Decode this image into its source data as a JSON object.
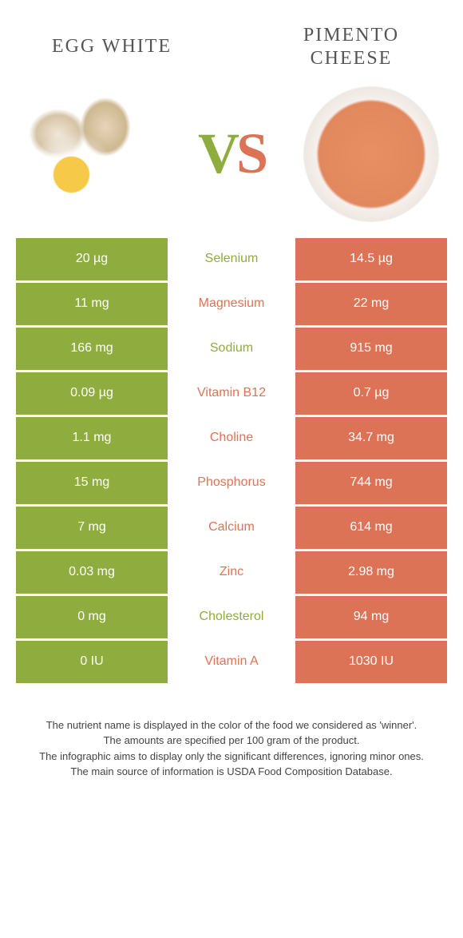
{
  "colors": {
    "left": "#8fad3f",
    "right": "#dd7356",
    "mid_left_text": "#8fad3f",
    "mid_right_text": "#dd7356",
    "white": "#ffffff"
  },
  "header": {
    "left_title": "EGG WHITE",
    "right_title": "PIMENTO CHEESE",
    "vs_v": "V",
    "vs_s": "S"
  },
  "rows": [
    {
      "left": "20 µg",
      "name": "Selenium",
      "right": "14.5 µg",
      "winner": "left"
    },
    {
      "left": "11 mg",
      "name": "Magnesium",
      "right": "22 mg",
      "winner": "right"
    },
    {
      "left": "166 mg",
      "name": "Sodium",
      "right": "915 mg",
      "winner": "left"
    },
    {
      "left": "0.09 µg",
      "name": "Vitamin B12",
      "right": "0.7 µg",
      "winner": "right"
    },
    {
      "left": "1.1 mg",
      "name": "Choline",
      "right": "34.7 mg",
      "winner": "right"
    },
    {
      "left": "15 mg",
      "name": "Phosphorus",
      "right": "744 mg",
      "winner": "right"
    },
    {
      "left": "7 mg",
      "name": "Calcium",
      "right": "614 mg",
      "winner": "right"
    },
    {
      "left": "0.03 mg",
      "name": "Zinc",
      "right": "2.98 mg",
      "winner": "right"
    },
    {
      "left": "0 mg",
      "name": "Cholesterol",
      "right": "94 mg",
      "winner": "left"
    },
    {
      "left": "0 IU",
      "name": "Vitamin A",
      "right": "1030 IU",
      "winner": "right"
    }
  ],
  "footer": {
    "line1": "The nutrient name is displayed in the color of the food we considered as 'winner'.",
    "line2": "The amounts are specified per 100 gram of the product.",
    "line3": "The infographic aims to display only the significant differences, ignoring minor ones.",
    "line4": "The main source of information is USDA Food Composition Database."
  }
}
